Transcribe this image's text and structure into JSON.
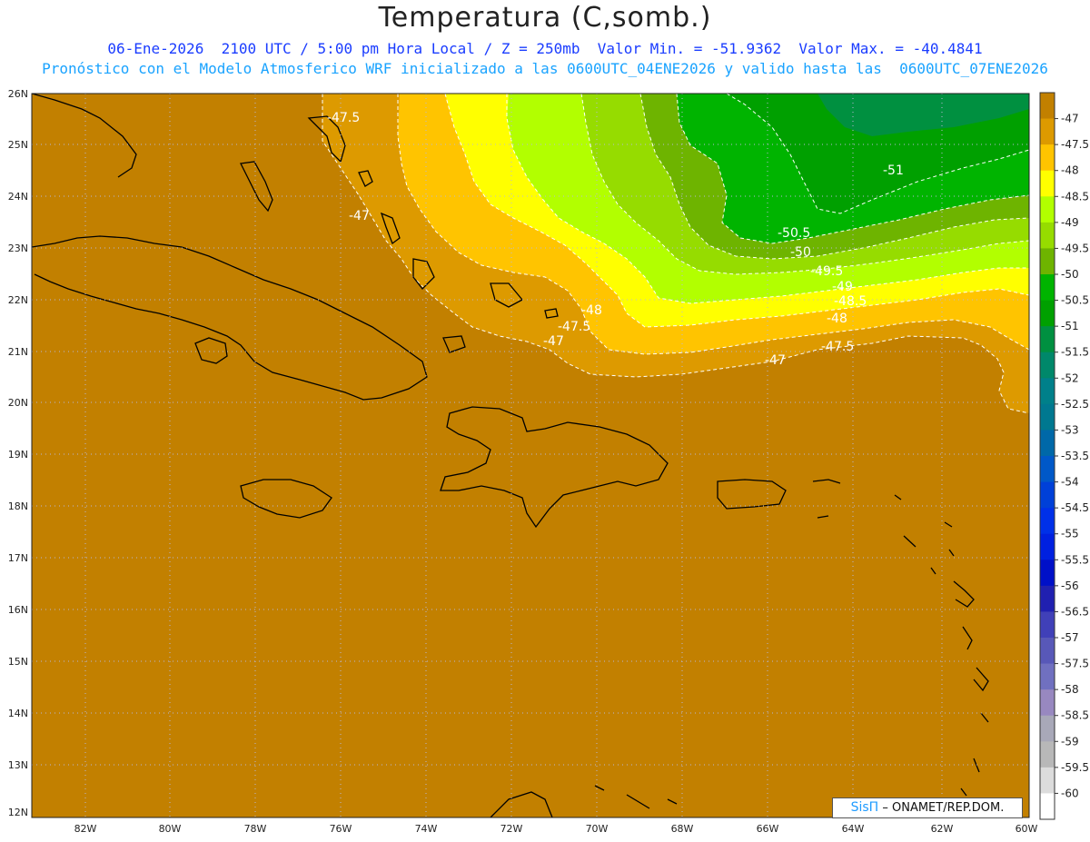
{
  "title": "Temperatura (C,somb.)",
  "subtitle1": "06-Ene-2026  2100 UTC / 5:00 pm Hora Local / Z = 250mb  Valor Min. = -51.9362  Valor Max. = -40.4841",
  "subtitle2": "Pronóstico con el Modelo Atmosferico WRF inicializado a las 0600UTC_04ENE2026 y valido hasta las  0600UTC_07ENE2026",
  "credit": {
    "logo": "SisΠ",
    "text": " – ONAMET/REP.DOM."
  },
  "lon_ticks": [
    "82W",
    "80W",
    "78W",
    "76W",
    "74W",
    "72W",
    "70W",
    "68W",
    "66W",
    "64W",
    "62W",
    "60W"
  ],
  "lat_ticks": [
    "26N",
    "25N",
    "24N",
    "23N",
    "22N",
    "21N",
    "20N",
    "19N",
    "18N",
    "17N",
    "16N",
    "15N",
    "14N",
    "13N",
    "12N"
  ],
  "colorbar": {
    "labels": [
      "-47",
      "-47.5",
      "-48",
      "-48.5",
      "-49",
      "-49.5",
      "-50",
      "-50.5",
      "-51",
      "-51.5",
      "-52",
      "-52.5",
      "-53",
      "-53.5",
      "-54",
      "-54.5",
      "-55",
      "-55.5",
      "-56",
      "-56.5",
      "-57",
      "-57.5",
      "-58",
      "-58.5",
      "-59",
      "-59.5",
      "-60"
    ],
    "colors": [
      "#c28000",
      "#dd9a00",
      "#ffc400",
      "#ffff00",
      "#b2ff00",
      "#96dc00",
      "#6eb400",
      "#00b400",
      "#00a000",
      "#009040",
      "#00886a",
      "#00808a",
      "#007890",
      "#0068a8",
      "#0058c8",
      "#0040d8",
      "#0030e8",
      "#0020e0",
      "#0010c8",
      "#2020b0",
      "#4040b8",
      "#5858b8",
      "#7070c0",
      "#9888c0",
      "#a8a8b8",
      "#b8b8b8",
      "#dcdcdc",
      "#ffffff"
    ]
  },
  "contour_labels": [
    "-47.5",
    "-47",
    "-48",
    "-47.5",
    "-47",
    "-51",
    "-50.5",
    "-50",
    "-49.5",
    "-49",
    "-48.5",
    "-48",
    "-47.5",
    "-47"
  ]
}
